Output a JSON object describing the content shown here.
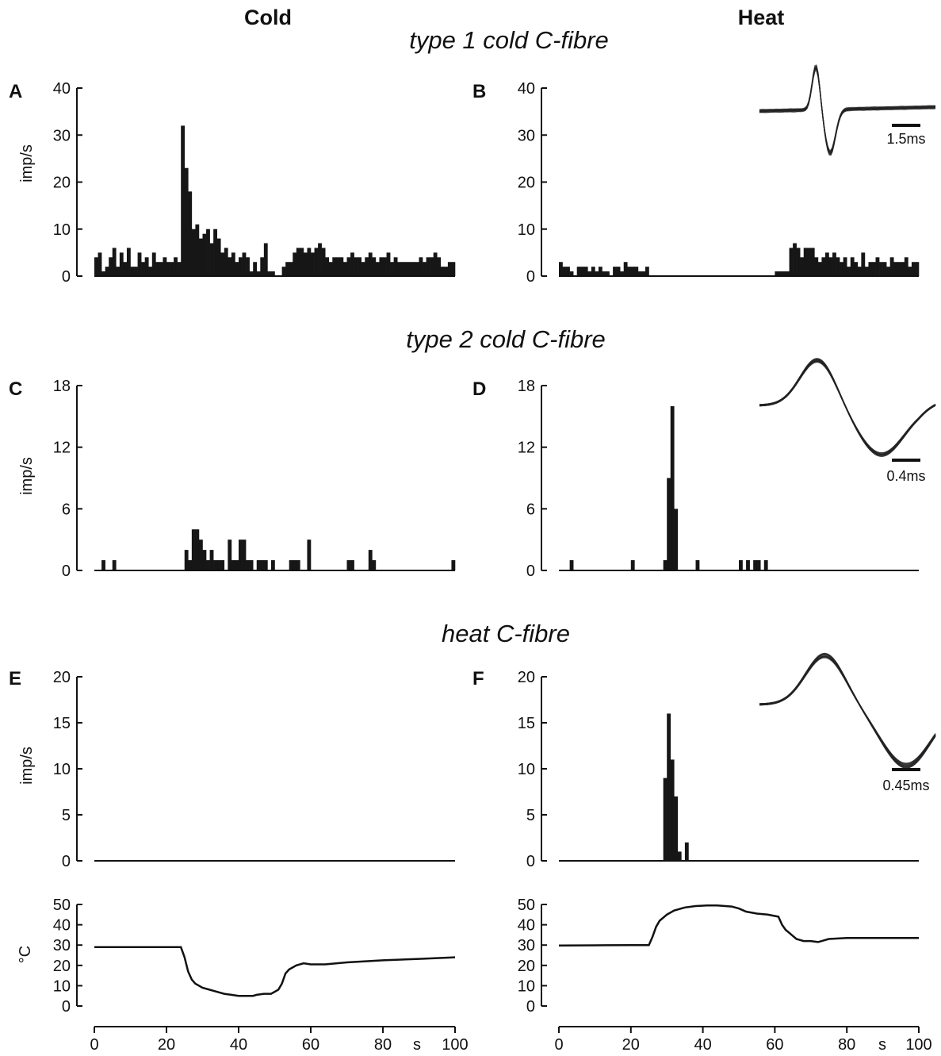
{
  "column_titles": {
    "left": "Cold",
    "right": "Heat"
  },
  "section_titles": [
    "type 1 cold C-fibre",
    "type 2 cold C-fibre",
    "heat C-fibre"
  ],
  "y_unit_label": "imp/s",
  "temp_unit_label": "°C",
  "x_unit_label": "s",
  "panels": [
    {
      "letter": "A"
    },
    {
      "letter": "B"
    },
    {
      "letter": "C"
    },
    {
      "letter": "D"
    },
    {
      "letter": "E"
    },
    {
      "letter": "F"
    }
  ],
  "inset_scale_labels": {
    "B": "1.5ms",
    "D": "0.4ms",
    "F": "0.45ms"
  },
  "chart_data": [
    {
      "id": "A",
      "type": "bar",
      "title": "type 1 cold C-fibre",
      "column": "Cold",
      "ylabel": "imp/s",
      "ylim": [
        0,
        40
      ],
      "yticks": [
        0,
        10,
        20,
        30,
        40
      ],
      "xlim": [
        0,
        100
      ],
      "bin_s": 1,
      "values": [
        4,
        5,
        1,
        2,
        4,
        6,
        2,
        5,
        3,
        6,
        2,
        2,
        5,
        3,
        4,
        2,
        5,
        3,
        3,
        4,
        3,
        3,
        4,
        3,
        32,
        23,
        18,
        10,
        11,
        8,
        9,
        10,
        7,
        10,
        8,
        5,
        6,
        4,
        5,
        3,
        4,
        5,
        4,
        1,
        3,
        1,
        4,
        7,
        1,
        1,
        0,
        0,
        2,
        3,
        3,
        5,
        6,
        6,
        5,
        6,
        5,
        6,
        7,
        6,
        4,
        3,
        4,
        4,
        4,
        3,
        4,
        5,
        4,
        4,
        3,
        4,
        5,
        4,
        3,
        4,
        4,
        5,
        3,
        4,
        3,
        3,
        3,
        3,
        3,
        3,
        4,
        3,
        4,
        4,
        5,
        4,
        2,
        2,
        3,
        3
      ]
    },
    {
      "id": "B",
      "type": "bar",
      "title": "type 1 cold C-fibre",
      "column": "Heat",
      "ylabel": "imp/s",
      "ylim": [
        0,
        40
      ],
      "yticks": [
        0,
        10,
        20,
        30,
        40
      ],
      "xlim": [
        0,
        100
      ],
      "bin_s": 1,
      "values": [
        3,
        2,
        2,
        1,
        0,
        2,
        2,
        2,
        1,
        2,
        1,
        2,
        1,
        1,
        0,
        2,
        2,
        1,
        3,
        2,
        2,
        2,
        1,
        1,
        2,
        0,
        0,
        0,
        0,
        0,
        0,
        0,
        0,
        0,
        0,
        0,
        0,
        0,
        0,
        0,
        0,
        0,
        0,
        0,
        0,
        0,
        0,
        0,
        0,
        0,
        0,
        0,
        0,
        0,
        0,
        0,
        0,
        0,
        0,
        0,
        1,
        1,
        1,
        1,
        6,
        7,
        6,
        4,
        6,
        6,
        6,
        4,
        3,
        4,
        5,
        4,
        5,
        4,
        3,
        4,
        2,
        4,
        3,
        2,
        5,
        2,
        3,
        3,
        4,
        3,
        3,
        2,
        4,
        3,
        3,
        3,
        4,
        2,
        3,
        3
      ]
    },
    {
      "id": "C",
      "type": "bar",
      "title": "type 2 cold C-fibre",
      "column": "Cold",
      "ylabel": "imp/s",
      "ylim": [
        0,
        18
      ],
      "yticks": [
        0,
        6,
        12,
        18
      ],
      "xlim": [
        0,
        100
      ],
      "bin_s": 1,
      "values": [
        0,
        0,
        1,
        0,
        0,
        1,
        0,
        0,
        0,
        0,
        0,
        0,
        0,
        0,
        0,
        0,
        0,
        0,
        0,
        0,
        0,
        0,
        0,
        0,
        0,
        2,
        1,
        4,
        4,
        3,
        2,
        1,
        2,
        1,
        1,
        1,
        0,
        3,
        1,
        1,
        3,
        3,
        1,
        1,
        0,
        1,
        1,
        1,
        0,
        1,
        0,
        0,
        0,
        0,
        1,
        1,
        1,
        0,
        0,
        3,
        0,
        0,
        0,
        0,
        0,
        0,
        0,
        0,
        0,
        0,
        1,
        1,
        0,
        0,
        0,
        0,
        2,
        1,
        0,
        0,
        0,
        0,
        0,
        0,
        0,
        0,
        0,
        0,
        0,
        0,
        0,
        0,
        0,
        0,
        0,
        0,
        0,
        0,
        0,
        1
      ]
    },
    {
      "id": "D",
      "type": "bar",
      "title": "type 2 cold C-fibre",
      "column": "Heat",
      "ylabel": "imp/s",
      "ylim": [
        0,
        18
      ],
      "yticks": [
        0,
        6,
        12,
        18
      ],
      "xlim": [
        0,
        100
      ],
      "bin_s": 1,
      "values": [
        0,
        0,
        0,
        1,
        0,
        0,
        0,
        0,
        0,
        0,
        0,
        0,
        0,
        0,
        0,
        0,
        0,
        0,
        0,
        0,
        1,
        0,
        0,
        0,
        0,
        0,
        0,
        0,
        0,
        1,
        9,
        16,
        6,
        0,
        0,
        0,
        0,
        0,
        1,
        0,
        0,
        0,
        0,
        0,
        0,
        0,
        0,
        0,
        0,
        0,
        1,
        0,
        1,
        0,
        1,
        1,
        0,
        1,
        0,
        0,
        0,
        0,
        0,
        0,
        0,
        0,
        0,
        0,
        0,
        0,
        0,
        0,
        0,
        0,
        0,
        0,
        0,
        0,
        0,
        0,
        0,
        0,
        0,
        0,
        0,
        0,
        0,
        0,
        0,
        0,
        0,
        0,
        0,
        0,
        0,
        0,
        0,
        0,
        0,
        0
      ]
    },
    {
      "id": "E",
      "type": "bar",
      "title": "heat C-fibre",
      "column": "Cold",
      "ylabel": "imp/s",
      "ylim": [
        0,
        20
      ],
      "yticks": [
        0,
        5,
        10,
        15,
        20
      ],
      "xlim": [
        0,
        100
      ],
      "bin_s": 1,
      "values": [
        0,
        0,
        0,
        0,
        0,
        0,
        0,
        0,
        0,
        0,
        0,
        0,
        0,
        0,
        0,
        0,
        0,
        0,
        0,
        0,
        0,
        0,
        0,
        0,
        0,
        0,
        0,
        0,
        0,
        0,
        0,
        0,
        0,
        0,
        0,
        0,
        0,
        0,
        0,
        0,
        0,
        0,
        0,
        0,
        0,
        0,
        0,
        0,
        0,
        0,
        0,
        0,
        0,
        0,
        0,
        0,
        0,
        0,
        0,
        0,
        0,
        0,
        0,
        0,
        0,
        0,
        0,
        0,
        0,
        0,
        0,
        0,
        0,
        0,
        0,
        0,
        0,
        0,
        0,
        0,
        0,
        0,
        0,
        0,
        0,
        0,
        0,
        0,
        0,
        0,
        0,
        0,
        0,
        0,
        0,
        0,
        0,
        0,
        0,
        0
      ]
    },
    {
      "id": "F",
      "type": "bar",
      "title": "heat C-fibre",
      "column": "Heat",
      "ylabel": "imp/s",
      "ylim": [
        0,
        20
      ],
      "yticks": [
        0,
        5,
        10,
        15,
        20
      ],
      "xlim": [
        0,
        100
      ],
      "bin_s": 1,
      "values": [
        0,
        0,
        0,
        0,
        0,
        0,
        0,
        0,
        0,
        0,
        0,
        0,
        0,
        0,
        0,
        0,
        0,
        0,
        0,
        0,
        0,
        0,
        0,
        0,
        0,
        0,
        0,
        0,
        0,
        9,
        16,
        11,
        7,
        1,
        0,
        2,
        0,
        0,
        0,
        0,
        0,
        0,
        0,
        0,
        0,
        0,
        0,
        0,
        0,
        0,
        0,
        0,
        0,
        0,
        0,
        0,
        0,
        0,
        0,
        0,
        0,
        0,
        0,
        0,
        0,
        0,
        0,
        0,
        0,
        0,
        0,
        0,
        0,
        0,
        0,
        0,
        0,
        0,
        0,
        0,
        0,
        0,
        0,
        0,
        0,
        0,
        0,
        0,
        0,
        0,
        0,
        0,
        0,
        0,
        0,
        0,
        0,
        0,
        0,
        0
      ]
    },
    {
      "id": "T-cold",
      "type": "line",
      "column": "Cold",
      "ylabel": "°C",
      "ylim": [
        0,
        50
      ],
      "yticks": [
        0,
        10,
        20,
        30,
        40,
        50
      ],
      "xlabel": "s",
      "xlim": [
        0,
        100
      ],
      "xticks": [
        0,
        20,
        40,
        60,
        80,
        100
      ],
      "x": [
        0,
        18,
        24,
        25,
        26,
        27,
        28,
        30,
        32,
        34,
        36,
        38,
        40,
        42,
        44,
        45,
        47,
        49,
        51,
        52,
        53,
        54,
        56,
        58,
        60,
        62,
        64,
        70,
        80,
        90,
        100
      ],
      "y": [
        29,
        29,
        29,
        24,
        17,
        13,
        11,
        9,
        8,
        7,
        6,
        5.5,
        5,
        5,
        5,
        5.5,
        6,
        6,
        8,
        11,
        16,
        18,
        20,
        21,
        20.5,
        20.5,
        20.5,
        21.5,
        22.5,
        23.2,
        24
      ]
    },
    {
      "id": "T-heat",
      "type": "line",
      "column": "Heat",
      "ylabel": "°C",
      "ylim": [
        0,
        50
      ],
      "yticks": [
        0,
        10,
        20,
        30,
        40,
        50
      ],
      "xlabel": "s",
      "xlim": [
        0,
        100
      ],
      "xticks": [
        0,
        20,
        40,
        60,
        80,
        100
      ],
      "x": [
        0,
        10,
        20,
        25,
        26,
        27,
        28,
        30,
        32,
        35,
        38,
        41,
        44,
        48,
        50,
        52,
        55,
        58,
        61,
        62,
        63,
        64,
        66,
        68,
        70,
        72,
        75,
        80,
        90,
        100
      ],
      "y": [
        29.8,
        29.9,
        30,
        30,
        34,
        39,
        42,
        45,
        47,
        48.5,
        49.2,
        49.5,
        49.5,
        49,
        48,
        46.5,
        45.5,
        45,
        44,
        40,
        37.5,
        36,
        33,
        32,
        32,
        31.5,
        33,
        33.5,
        33.5,
        33.5
      ]
    }
  ]
}
